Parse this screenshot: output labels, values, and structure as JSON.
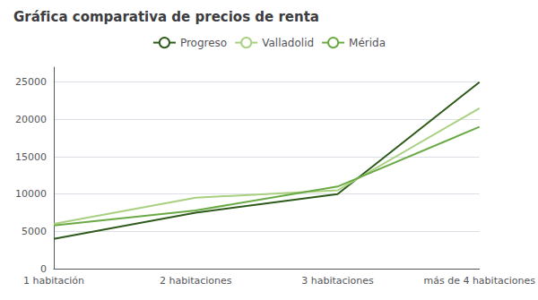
{
  "chart_data": {
    "type": "line",
    "title": "Gráfica comparativa de precios de renta",
    "categories": [
      "1 habitación",
      "2 habitaciones",
      "3 habitaciones",
      "más de 4 habitaciones"
    ],
    "series": [
      {
        "name": "Progreso",
        "color": "#2d5a1b",
        "values": [
          4000,
          7500,
          10000,
          25000
        ]
      },
      {
        "name": "Valladolid",
        "color": "#a8d080",
        "values": [
          6000,
          9500,
          10500,
          21500
        ]
      },
      {
        "name": "Mérida",
        "color": "#6aaa45",
        "values": [
          5800,
          7800,
          11000,
          19000
        ]
      }
    ],
    "ylim": [
      0,
      27000
    ],
    "yticks": [
      0,
      5000,
      10000,
      15000,
      20000,
      25000
    ],
    "grid": true,
    "legend": "top"
  }
}
